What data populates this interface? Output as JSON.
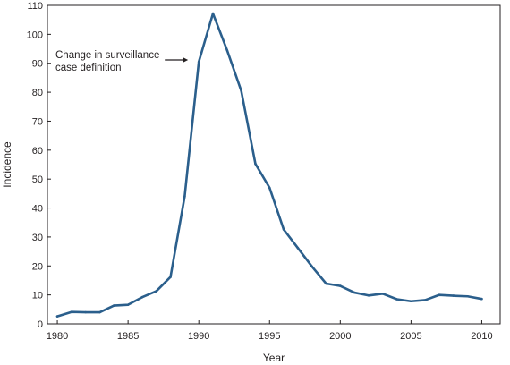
{
  "chart_data": {
    "type": "line",
    "title": "",
    "xlabel": "Year",
    "ylabel": "Incidence",
    "xlim": [
      1979.3,
      2011.3
    ],
    "ylim": [
      0,
      110
    ],
    "x_ticks": [
      1980,
      1985,
      1990,
      1995,
      2000,
      2005,
      2010
    ],
    "x_tick_labels": [
      "1980",
      "1985",
      "1990",
      "1995",
      "2000",
      "2005",
      "2010"
    ],
    "y_ticks": [
      0,
      10,
      20,
      30,
      40,
      50,
      60,
      70,
      80,
      90,
      100,
      110
    ],
    "y_tick_labels": [
      "0",
      "10",
      "20",
      "30",
      "40",
      "50",
      "60",
      "70",
      "80",
      "90",
      "100",
      "110"
    ],
    "grid": false,
    "line_color": "#2b5f8c",
    "series": [
      {
        "x": [
          1980,
          1981,
          1982,
          1983,
          1984,
          1985,
          1986,
          1987,
          1988,
          1989,
          1990,
          1991,
          1992,
          1993,
          1994,
          1995,
          1996,
          1997,
          1998,
          1999,
          2000,
          2001,
          2002,
          2003,
          2004,
          2005,
          2006,
          2007,
          2008,
          2009,
          2010
        ],
        "values": [
          2.6,
          4.1,
          4.0,
          4.0,
          6.3,
          6.6,
          9.2,
          11.3,
          16.2,
          44.0,
          90.5,
          107.2,
          94.5,
          80.5,
          55.3,
          47.0,
          32.6,
          26.2,
          19.8,
          13.9,
          13.1,
          10.8,
          9.8,
          10.4,
          8.5,
          7.8,
          8.2,
          10.0,
          9.7,
          9.5,
          8.6
        ]
      }
    ],
    "annotations": [
      {
        "text_lines": [
          "Change in surveillance",
          "case definition"
        ],
        "arrow_to_x": 1990
      }
    ]
  }
}
